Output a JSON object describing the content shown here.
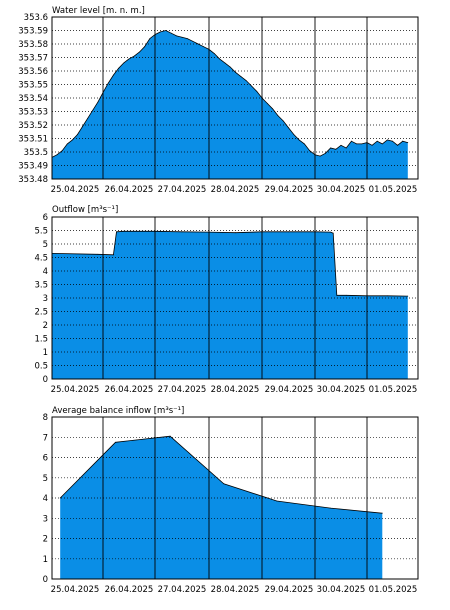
{
  "colors": {
    "area": "#0a8ee6",
    "line": "#000000",
    "grid": "#000000",
    "frame": "#000000"
  },
  "chart_data": [
    {
      "type": "area",
      "title": "Water level [m. n. m.]",
      "xlabel": "",
      "ylabel": "",
      "ylim": [
        353.48,
        353.6
      ],
      "y_ticks": [
        "353.48",
        "353.49",
        "353.5",
        "353.51",
        "353.52",
        "353.53",
        "353.54",
        "353.55",
        "353.56",
        "353.57",
        "353.58",
        "353.59",
        "353.6"
      ],
      "x_ticks": [
        "25.04.2025",
        "26.04.2025",
        "27.04.2025",
        "28.04.2025",
        "29.04.2025",
        "30.04.2025",
        "01.05.2025"
      ],
      "grid": true,
      "x": [
        0,
        0.1,
        0.2,
        0.3,
        0.4,
        0.5,
        0.6,
        0.7,
        0.8,
        0.9,
        1.0,
        1.1,
        1.2,
        1.3,
        1.4,
        1.5,
        1.6,
        1.7,
        1.8,
        1.9,
        2.0,
        2.1,
        2.2,
        2.3,
        2.4,
        2.5,
        2.6,
        2.7,
        2.8,
        2.9,
        3.0,
        3.1,
        3.2,
        3.3,
        3.4,
        3.5,
        3.6,
        3.7,
        3.8,
        3.9,
        4.0,
        4.1,
        4.2,
        4.3,
        4.4,
        4.5,
        4.6,
        4.7,
        4.8,
        4.9,
        5.0,
        5.1,
        5.2,
        5.3,
        5.4,
        5.5,
        5.6,
        5.7,
        5.8,
        5.9,
        6.0,
        6.1,
        6.2,
        6.3,
        6.4,
        6.5,
        6.6,
        6.7,
        6.8
      ],
      "values": [
        353.496,
        353.498,
        353.501,
        353.506,
        353.509,
        353.513,
        353.519,
        353.525,
        353.531,
        353.537,
        353.544,
        353.551,
        353.557,
        353.562,
        353.566,
        353.569,
        353.571,
        353.574,
        353.578,
        353.584,
        353.587,
        353.589,
        353.59,
        353.588,
        353.586,
        353.585,
        353.584,
        353.582,
        353.58,
        353.578,
        353.576,
        353.573,
        353.569,
        353.566,
        353.563,
        353.559,
        353.556,
        353.553,
        353.549,
        353.545,
        353.54,
        353.536,
        353.532,
        353.527,
        353.523,
        353.518,
        353.513,
        353.509,
        353.506,
        353.501,
        353.498,
        353.497,
        353.499,
        353.503,
        353.502,
        353.505,
        353.503,
        353.508,
        353.506,
        353.506,
        353.507,
        353.505,
        353.508,
        353.506,
        353.509,
        353.508,
        353.505,
        353.508,
        353.507
      ]
    },
    {
      "type": "area",
      "title": "Outflow [m³s⁻¹]",
      "xlabel": "",
      "ylabel": "",
      "ylim": [
        0,
        6
      ],
      "y_ticks": [
        "0",
        "0.5",
        "1",
        "1.5",
        "2",
        "2.5",
        "3",
        "3.5",
        "4",
        "4.5",
        "5",
        "5.5",
        "6"
      ],
      "x_ticks": [
        "25.04.2025",
        "26.04.2025",
        "27.04.2025",
        "28.04.2025",
        "29.04.2025",
        "30.04.2025",
        "01.05.2025"
      ],
      "grid": true,
      "x": [
        0,
        0.9,
        1.2,
        1.26,
        1.4,
        2.0,
        2.5,
        3.0,
        3.5,
        4.0,
        4.5,
        5.0,
        5.3,
        5.35,
        5.42,
        5.6,
        6.0,
        6.4,
        6.8
      ],
      "values": [
        4.65,
        4.62,
        4.6,
        5.45,
        5.47,
        5.47,
        5.45,
        5.44,
        5.42,
        5.45,
        5.45,
        5.45,
        5.44,
        5.4,
        3.1,
        3.1,
        3.08,
        3.08,
        3.07
      ]
    },
    {
      "type": "area",
      "title": "Average balance inflow  [m³s⁻¹]",
      "xlabel": "",
      "ylabel": "",
      "ylim": [
        0,
        8
      ],
      "y_ticks": [
        "0",
        "1",
        "2",
        "3",
        "4",
        "5",
        "6",
        "7",
        "8"
      ],
      "x_ticks": [
        "25.04.2025",
        "26.04.2025",
        "27.04.2025",
        "28.04.2025",
        "29.04.2025",
        "30.04.2025",
        "01.05.2025"
      ],
      "grid": true,
      "x": [
        0.16,
        1.24,
        2.28,
        3.28,
        4.28,
        5.3,
        6.3
      ],
      "values": [
        4.0,
        6.75,
        7.05,
        4.7,
        3.85,
        3.5,
        3.25
      ]
    }
  ]
}
